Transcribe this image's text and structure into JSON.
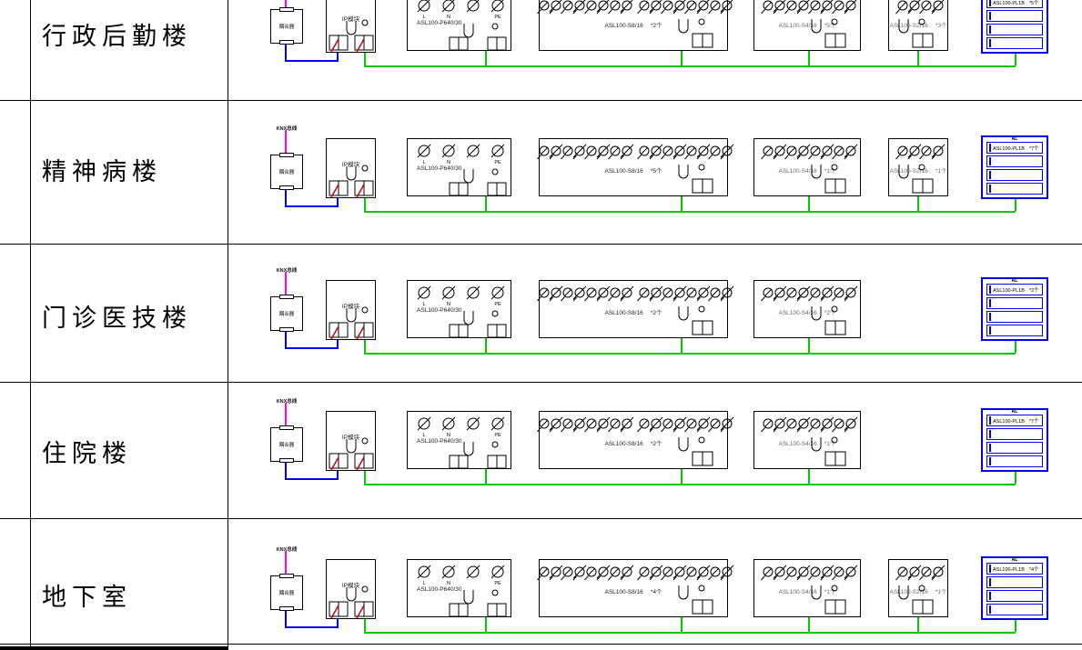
{
  "colors": {
    "knx_trunk": "#ff00ff",
    "knx_line": "#0000ff",
    "power_wire": "#00cc00",
    "panel_outline": "#0000ee",
    "terminal_mark": "#cc0000",
    "drawing_line": "#000000"
  },
  "shared": {
    "bus_tag": "KNX总线",
    "coupler_label": "耦合器",
    "ip_label": "IP模块",
    "psu_model": "ASL100-P640/30",
    "psu_terminals": [
      "L",
      "N",
      "",
      "PE"
    ],
    "panel_header": "AL"
  },
  "rows": [
    {
      "name": "行政后勤楼",
      "actuators": [
        {
          "model": "ASL100-S8/16",
          "qty": "*2个",
          "channels": 8
        },
        {
          "model": "ASL100-S4/16",
          "qty": "*5个",
          "channels": 4
        },
        {
          "model": "ASL100-S2/16",
          "qty": "*3个",
          "channels": 2
        }
      ],
      "panel": {
        "model": "ASL100-PL1B",
        "qty": "*5个"
      }
    },
    {
      "name": "精神病楼",
      "actuators": [
        {
          "model": "ASL100-S8/16",
          "qty": "*5个",
          "channels": 8
        },
        {
          "model": "ASL100-S4/16",
          "qty": "*1个",
          "channels": 4
        },
        {
          "model": "ASL100-S2/16",
          "qty": "*1个",
          "channels": 2
        }
      ],
      "panel": {
        "model": "ASL100-PL1B",
        "qty": "*7个"
      }
    },
    {
      "name": "门诊医技楼",
      "actuators": [
        {
          "model": "ASL100-S8/16",
          "qty": "*2个",
          "channels": 8
        },
        {
          "model": "ASL100-S4/16",
          "qty": "*2个",
          "channels": 4
        }
      ],
      "panel": {
        "model": "ASL100-PL1B",
        "qty": "*2个"
      }
    },
    {
      "name": "住院楼",
      "actuators": [
        {
          "model": "ASL100-S8/16",
          "qty": "*2个",
          "channels": 8
        },
        {
          "model": "ASL100-S4/16",
          "qty": "*1个",
          "channels": 4
        }
      ],
      "panel": {
        "model": "ASL100-PL1B",
        "qty": "*7个"
      }
    },
    {
      "name": "地下室",
      "actuators": [
        {
          "model": "ASL100-S8/16",
          "qty": "*4个",
          "channels": 8
        },
        {
          "model": "ASL100-S4/16",
          "qty": "*1个",
          "channels": 4
        },
        {
          "model": "ASL100-S2/16",
          "qty": "*1个",
          "channels": 2
        }
      ],
      "panel": {
        "model": "ASL100-PL1B",
        "qty": "*4个"
      }
    }
  ]
}
